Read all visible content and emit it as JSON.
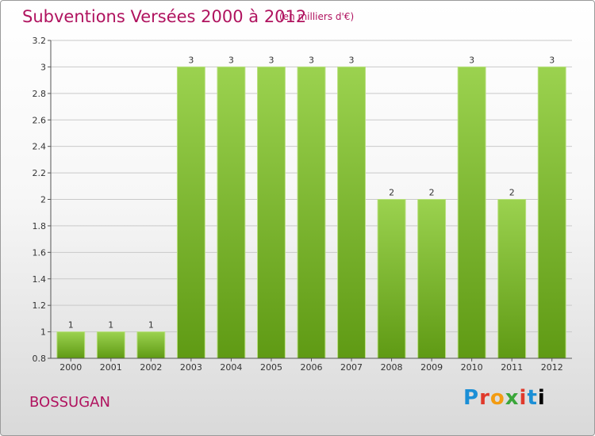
{
  "header": {
    "title": "Subventions Versées 2000 à 2012",
    "unit": "(en milliers d'€)"
  },
  "footer": {
    "commune": "BOSSUGAN",
    "logo": "Proxiti"
  },
  "colors": {
    "title": "#b0135f",
    "bar_top": "#9bd24f",
    "bar_bottom": "#5f9a14"
  },
  "chart_data": {
    "type": "bar",
    "title": "Subventions Versées 2000 à 2012",
    "subtitle": "(en milliers d'€)",
    "categories": [
      "2000",
      "2001",
      "2002",
      "2003",
      "2004",
      "2005",
      "2006",
      "2007",
      "2008",
      "2009",
      "2010",
      "2011",
      "2012"
    ],
    "values": [
      1,
      1,
      1,
      3,
      3,
      3,
      3,
      3,
      2,
      2,
      3,
      2,
      3
    ],
    "data_labels": [
      "1",
      "1",
      "1",
      "3",
      "3",
      "3",
      "3",
      "3",
      "2",
      "2",
      "3",
      "2",
      "3"
    ],
    "ylim": [
      0.8,
      3.2
    ],
    "yticks": [
      0.8,
      1,
      1.2,
      1.4,
      1.6,
      1.8,
      2,
      2.2,
      2.4,
      2.6,
      2.8,
      3,
      3.2
    ],
    "ytick_labels": [
      "0.8",
      "1",
      "1.2",
      "1.4",
      "1.6",
      "1.8",
      "2",
      "2.2",
      "2.4",
      "2.6",
      "2.8",
      "3",
      "3.2"
    ],
    "grid": "horizontal"
  }
}
